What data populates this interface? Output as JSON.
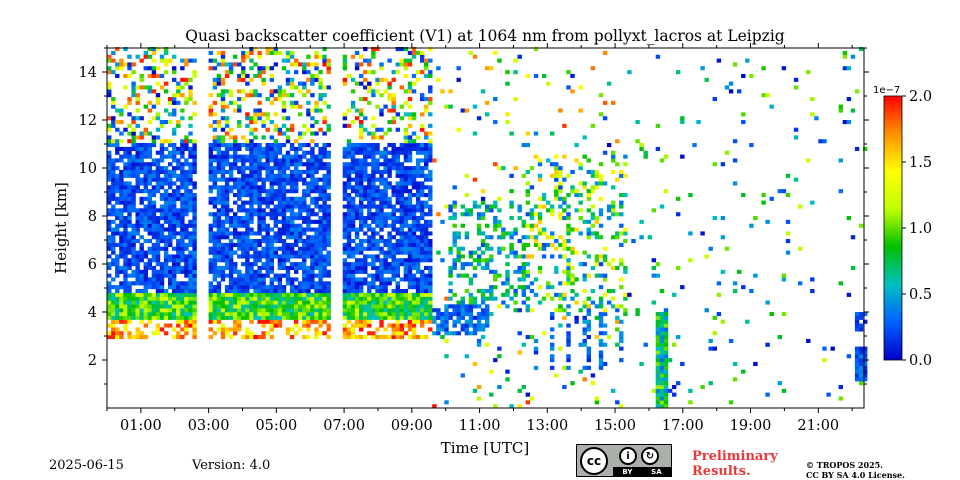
{
  "chart_data": {
    "type": "heatmap",
    "title": "Quasi backscatter coefficient (V1) at 1064 nm from pollyxt_lacros at Leipzig",
    "xlabel": "Time [UTC]",
    "ylabel": "Height [km]",
    "x_range_hours": [
      0,
      22.35
    ],
    "ylim": [
      0,
      15
    ],
    "xticks": [
      1,
      3,
      5,
      7,
      9,
      11,
      13,
      15,
      17,
      19,
      21
    ],
    "xtick_labels": [
      "01:00",
      "03:00",
      "05:00",
      "07:00",
      "09:00",
      "11:00",
      "13:00",
      "15:00",
      "17:00",
      "19:00",
      "21:00"
    ],
    "yticks": [
      2,
      4,
      6,
      8,
      10,
      12,
      14
    ],
    "ytick_labels": [
      "2",
      "4",
      "6",
      "8",
      "10",
      "12",
      "14"
    ],
    "colorbar": {
      "range": [
        0.0,
        2.0
      ],
      "ticks": [
        0.0,
        0.5,
        1.0,
        1.5,
        2.0
      ],
      "tick_labels": [
        "0.0",
        "0.5",
        "1.0",
        "1.5",
        "2.0"
      ],
      "scale_label": "1e−7",
      "colormap": [
        "#0000c8",
        "#0060ff",
        "#00c0c0",
        "#00c000",
        "#c0ff00",
        "#ffff00",
        "#ff9000",
        "#ff0000"
      ]
    },
    "features": [
      {
        "name": "aerosol layer",
        "t_start": 0.0,
        "t_end": 9.0,
        "z_bottom": 2.8,
        "z_top": 4.8
      },
      {
        "name": "noise region",
        "t_start": 0.0,
        "t_end": 9.5,
        "z_bottom": 4.8,
        "z_top": 15.0
      },
      {
        "name": "no data gap",
        "t_start": 2.55,
        "t_end": 2.9,
        "z_bottom": 0,
        "z_top": 15
      },
      {
        "name": "no data gap",
        "t_start": 6.55,
        "t_end": 6.9,
        "z_bottom": 0,
        "z_top": 15
      },
      {
        "name": "low cloud",
        "t_start": 16.1,
        "t_end": 16.55,
        "z_bottom": 0,
        "z_top": 4.0
      },
      {
        "name": "boundary layer",
        "t_start": 22.0,
        "t_end": 22.35,
        "z_bottom": 1.0,
        "z_top": 2.5
      }
    ]
  },
  "footer": {
    "date": "2025-06-15",
    "version": "Version: 4.0",
    "preliminary": [
      "Preliminary",
      "Results."
    ],
    "copyright": [
      "© TROPOS 2025.",
      "CC BY SA 4.0 License."
    ],
    "cc_logo": {
      "main": "cc",
      "by": "BY",
      "sa": "SA"
    }
  }
}
